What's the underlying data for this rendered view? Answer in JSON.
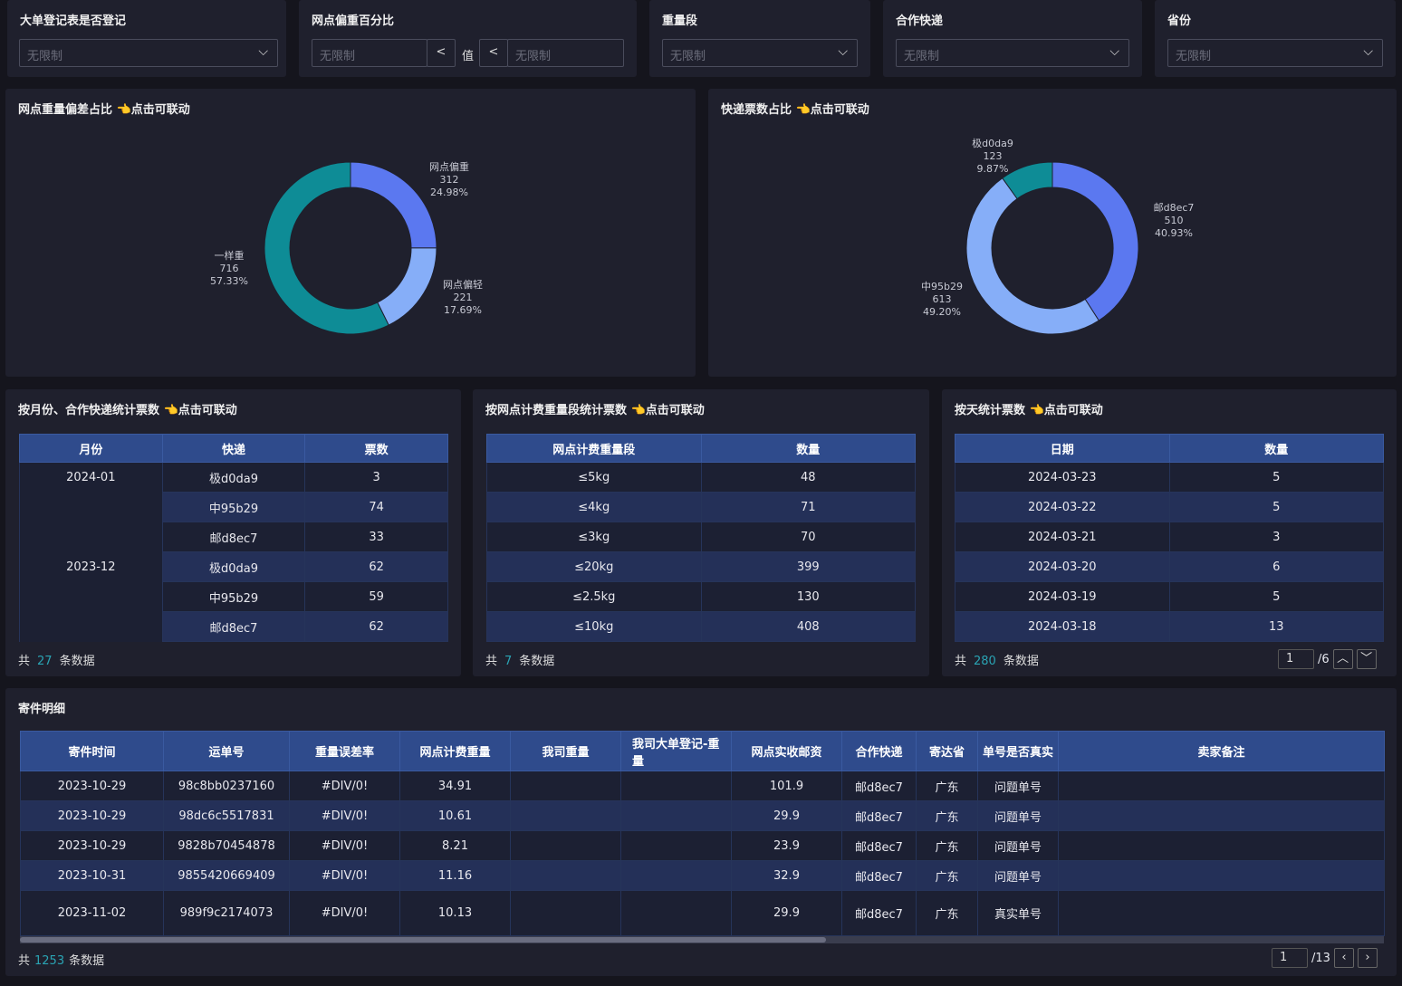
{
  "filters": [
    {
      "label": "大单登记表是否登记",
      "value": "无限制"
    },
    {
      "label": "网点偏重百分比",
      "min": "无限制",
      "op1": "<",
      "mid": "值",
      "op2": "<",
      "max": "无限制"
    },
    {
      "label": "重量段",
      "value": "无限制"
    },
    {
      "label": "合作快递",
      "value": "无限制"
    },
    {
      "label": "省份",
      "value": "无限制"
    }
  ],
  "charts": {
    "left": {
      "title": "网点重量偏差占比 👈点击可联动"
    },
    "right": {
      "title": "快递票数占比 👈点击可联动"
    }
  },
  "chart_data": [
    {
      "type": "pie",
      "title": "网点重量偏差占比",
      "slices": [
        {
          "name": "网点偏重",
          "value": 312,
          "pct": "24.98%",
          "color": "#5b78f0"
        },
        {
          "name": "网点偏轻",
          "value": 221,
          "pct": "17.69%",
          "color": "#86aef8"
        },
        {
          "name": "一样重",
          "value": 716,
          "pct": "57.33%",
          "color": "#0e8c96"
        }
      ]
    },
    {
      "type": "pie",
      "title": "快递票数占比",
      "slices": [
        {
          "name": "邮d8ec7",
          "value": 510,
          "pct": "40.93%",
          "color": "#5b78f0"
        },
        {
          "name": "中95b29",
          "value": 613,
          "pct": "49.20%",
          "color": "#86aef8"
        },
        {
          "name": "极d0da9",
          "value": 123,
          "pct": "9.87%",
          "color": "#0e8c96"
        }
      ]
    }
  ],
  "t1": {
    "title": "按月份、合作快递统计票数 👈点击可联动",
    "headers": [
      "月份",
      "快递",
      "票数"
    ],
    "rows": [
      [
        "2024-01",
        "极d0da9",
        "3"
      ],
      [
        "",
        "中95b29",
        "74"
      ],
      [
        "",
        "邮d8ec7",
        "33"
      ],
      [
        "2023-12",
        "极d0da9",
        "62"
      ],
      [
        "",
        "中95b29",
        "59"
      ],
      [
        "",
        "邮d8ec7",
        "62"
      ]
    ],
    "total_prefix": "共",
    "total": "27",
    "total_suffix": "条数据"
  },
  "t2": {
    "title": "按网点计费重量段统计票数 👈点击可联动",
    "headers": [
      "网点计费重量段",
      "数量"
    ],
    "rows": [
      [
        "≤5kg",
        "48"
      ],
      [
        "≤4kg",
        "71"
      ],
      [
        "≤3kg",
        "70"
      ],
      [
        "≤20kg",
        "399"
      ],
      [
        "≤2.5kg",
        "130"
      ],
      [
        "≤10kg",
        "408"
      ]
    ],
    "total_prefix": "共",
    "total": "7",
    "total_suffix": "条数据"
  },
  "t3": {
    "title": "按天统计票数 👈点击可联动",
    "headers": [
      "日期",
      "数量"
    ],
    "rows": [
      [
        "2024-03-23",
        "5"
      ],
      [
        "2024-03-22",
        "5"
      ],
      [
        "2024-03-21",
        "3"
      ],
      [
        "2024-03-20",
        "6"
      ],
      [
        "2024-03-19",
        "5"
      ],
      [
        "2024-03-18",
        "13"
      ]
    ],
    "total_prefix": "共",
    "total": "280",
    "total_suffix": "条数据",
    "page": "1",
    "pages": "/6"
  },
  "detail": {
    "title": "寄件明细",
    "headers": [
      "寄件时间",
      "运单号",
      "重量误差率",
      "网点计费重量",
      "我司重量",
      "我司大单登记-重量",
      "网点实收邮资",
      "合作快递",
      "寄达省",
      "单号是否真实",
      "卖家备注"
    ],
    "rows": [
      [
        "2023-10-29",
        "98c8bb0237160",
        "#DIV/0!",
        "34.91",
        "",
        "",
        "101.9",
        "邮d8ec7",
        "广东",
        "问题单号",
        ""
      ],
      [
        "2023-10-29",
        "98dc6c5517831",
        "#DIV/0!",
        "10.61",
        "",
        "",
        "29.9",
        "邮d8ec7",
        "广东",
        "问题单号",
        ""
      ],
      [
        "2023-10-29",
        "9828b70454878",
        "#DIV/0!",
        "8.21",
        "",
        "",
        "23.9",
        "邮d8ec7",
        "广东",
        "问题单号",
        ""
      ],
      [
        "2023-10-31",
        "9855420669409",
        "#DIV/0!",
        "11.16",
        "",
        "",
        "32.9",
        "邮d8ec7",
        "广东",
        "问题单号",
        ""
      ],
      [
        "2023-11-02",
        "989f9c2174073",
        "#DIV/0!",
        "10.13",
        "",
        "",
        "29.9",
        "邮d8ec7",
        "广东",
        "真实单号",
        ""
      ]
    ],
    "total_prefix": "共",
    "total": "1253",
    "total_suffix": "条数据",
    "page": "1",
    "pages": "/13"
  }
}
